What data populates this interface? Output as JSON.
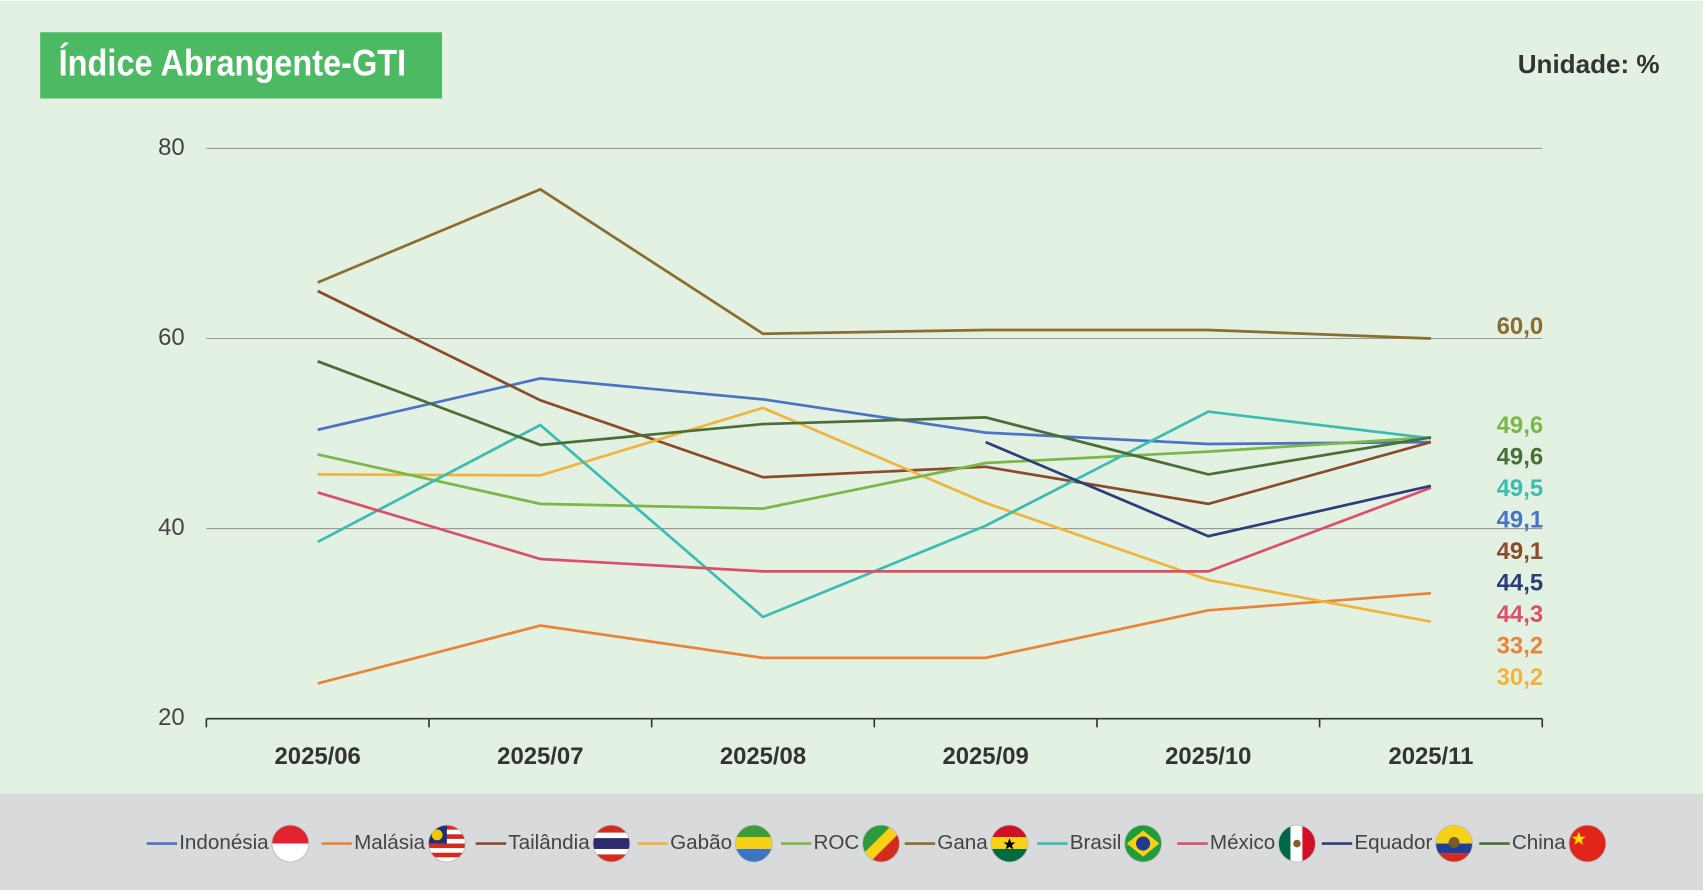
{
  "chart_data": {
    "type": "line",
    "title": "Índice Abrangente-GTI",
    "unit_label": "Unidade: %",
    "categories": [
      "2025/06",
      "2025/07",
      "2025/08",
      "2025/09",
      "2025/10",
      "2025/11"
    ],
    "ylim": [
      20,
      80
    ],
    "yticks": [
      20,
      40,
      60,
      80
    ],
    "grid": true,
    "legend": "bottom",
    "series": [
      {
        "name": "Indonésia",
        "color": "#4a74c2",
        "values": [
          50.4,
          55.8,
          53.6,
          50.1,
          48.9,
          49.1
        ],
        "value_labels": [
          null,
          null,
          null,
          null,
          null,
          "49,1"
        ]
      },
      {
        "name": "Malásia",
        "color": "#e8843a",
        "values": [
          23.7,
          29.8,
          26.4,
          26.4,
          31.4,
          33.2
        ],
        "value_labels": [
          null,
          null,
          null,
          null,
          null,
          "33,2"
        ]
      },
      {
        "name": "Tailândia",
        "color": "#8b4a2b",
        "values": [
          65.0,
          53.5,
          45.4,
          46.5,
          42.6,
          49.1
        ],
        "value_labels": [
          null,
          null,
          null,
          null,
          null,
          "49,1"
        ]
      },
      {
        "name": "Gabão",
        "color": "#f0b43c",
        "values": [
          45.7,
          45.6,
          52.7,
          42.7,
          34.6,
          30.2
        ],
        "value_labels": [
          null,
          null,
          null,
          null,
          null,
          "30,2"
        ]
      },
      {
        "name": "ROC",
        "color": "#7ab648",
        "values": [
          47.8,
          42.6,
          42.1,
          46.9,
          48.1,
          49.6
        ],
        "value_labels": [
          null,
          null,
          null,
          null,
          null,
          "49,6"
        ]
      },
      {
        "name": "Gana",
        "color": "#8b6d2f",
        "values": [
          65.9,
          75.7,
          60.5,
          60.9,
          60.9,
          60.0
        ],
        "value_labels": [
          null,
          null,
          null,
          null,
          null,
          "60,0"
        ]
      },
      {
        "name": "Brasil",
        "color": "#3cbcb0",
        "values": [
          38.6,
          50.9,
          30.7,
          40.3,
          52.3,
          49.5
        ],
        "value_labels": [
          null,
          null,
          null,
          null,
          null,
          "49,5"
        ]
      },
      {
        "name": "México",
        "color": "#d9506a",
        "values": [
          43.8,
          36.8,
          35.5,
          35.5,
          35.5,
          44.3
        ],
        "value_labels": [
          null,
          null,
          null,
          null,
          null,
          "44,3"
        ]
      },
      {
        "name": "Equador",
        "color": "#2c3e7a",
        "values": [
          null,
          null,
          null,
          49.1,
          39.2,
          44.5
        ],
        "value_labels": [
          null,
          null,
          null,
          null,
          null,
          "44,5"
        ]
      },
      {
        "name": "China",
        "color": "#4a6e35",
        "values": [
          57.6,
          48.8,
          51.0,
          51.7,
          45.7,
          49.6
        ],
        "value_labels": [
          null,
          null,
          null,
          null,
          null,
          "49,6"
        ]
      }
    ]
  }
}
